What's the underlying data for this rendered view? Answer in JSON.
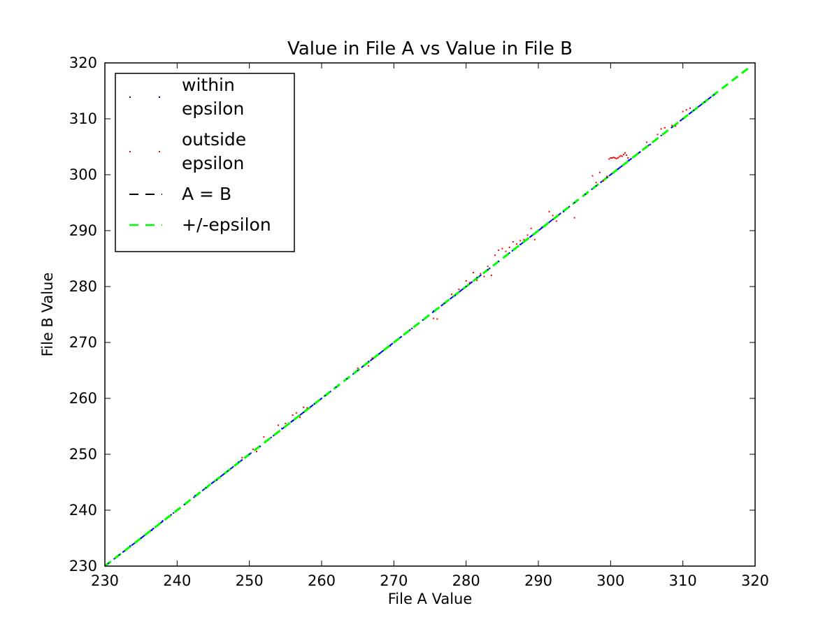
{
  "chart_data": {
    "type": "scatter",
    "title": "Value in File A vs Value in File B",
    "xlabel": "File A Value",
    "ylabel": "File B Value",
    "xlim": [
      230,
      320
    ],
    "ylim": [
      230,
      320
    ],
    "xticks": [
      230,
      240,
      250,
      260,
      270,
      280,
      290,
      300,
      310,
      320
    ],
    "yticks": [
      230,
      240,
      250,
      260,
      270,
      280,
      290,
      300,
      310,
      320
    ],
    "grid": false,
    "legend_position": "top-left",
    "legend": [
      {
        "label_lines": [
          "within",
          "epsilon"
        ],
        "marker": "point",
        "color": "#000080"
      },
      {
        "label_lines": [
          "outside",
          "epsilon"
        ],
        "marker": "point",
        "color": "#ff0000"
      },
      {
        "label_lines": [
          "A = B"
        ],
        "marker": "dashed-line",
        "color": "#000000"
      },
      {
        "label_lines": [
          "+/-epsilon"
        ],
        "marker": "dashed-line",
        "color": "#00ff00"
      }
    ],
    "series": [
      {
        "name": "within epsilon",
        "kind": "scatter",
        "color": "#0000ff",
        "points": [
          [
            230.5,
            230.5
          ],
          [
            232.0,
            232.0
          ],
          [
            233.5,
            233.6
          ],
          [
            235.0,
            235.0
          ],
          [
            236.5,
            236.4
          ],
          [
            238.0,
            238.1
          ],
          [
            239.5,
            239.5
          ],
          [
            241.0,
            241.0
          ],
          [
            242.5,
            242.6
          ],
          [
            244.0,
            244.0
          ],
          [
            245.5,
            245.4
          ],
          [
            247.0,
            247.0
          ],
          [
            248.5,
            248.6
          ],
          [
            250.0,
            250.0
          ],
          [
            251.5,
            251.4
          ],
          [
            253.0,
            253.0
          ],
          [
            254.5,
            254.6
          ],
          [
            256.0,
            256.0
          ],
          [
            257.5,
            257.5
          ],
          [
            259.0,
            259.0
          ],
          [
            260.5,
            260.5
          ],
          [
            262.0,
            262.0
          ],
          [
            263.5,
            263.5
          ],
          [
            265.0,
            265.0
          ],
          [
            266.5,
            266.6
          ],
          [
            268.0,
            268.0
          ],
          [
            269.5,
            269.4
          ],
          [
            271.0,
            271.0
          ],
          [
            272.5,
            272.5
          ],
          [
            274.0,
            274.0
          ],
          [
            275.5,
            275.6
          ],
          [
            277.0,
            277.0
          ],
          [
            278.5,
            278.4
          ],
          [
            280.0,
            280.0
          ],
          [
            281.5,
            281.6
          ],
          [
            283.0,
            283.0
          ],
          [
            284.5,
            284.5
          ],
          [
            286.0,
            286.0
          ],
          [
            287.5,
            287.5
          ],
          [
            289.0,
            289.0
          ],
          [
            290.5,
            290.6
          ],
          [
            292.0,
            292.0
          ],
          [
            293.5,
            293.4
          ],
          [
            295.0,
            295.0
          ],
          [
            296.5,
            296.5
          ],
          [
            298.0,
            298.0
          ],
          [
            299.5,
            299.5
          ],
          [
            301.0,
            301.0
          ],
          [
            302.5,
            302.6
          ],
          [
            304.0,
            304.0
          ],
          [
            305.5,
            305.4
          ],
          [
            307.0,
            307.0
          ],
          [
            308.5,
            308.5
          ],
          [
            310.0,
            310.0
          ],
          [
            311.5,
            311.5
          ],
          [
            313.0,
            313.0
          ],
          [
            314.3,
            314.3
          ]
        ]
      },
      {
        "name": "outside epsilon",
        "kind": "scatter",
        "color": "#ff0000",
        "points": [
          [
            249.0,
            249.4
          ],
          [
            250.5,
            250.9
          ],
          [
            251.0,
            250.5
          ],
          [
            252.0,
            253.1
          ],
          [
            254.0,
            255.2
          ],
          [
            255.0,
            255.5
          ],
          [
            256.0,
            257.0
          ],
          [
            256.5,
            257.4
          ],
          [
            257.0,
            256.6
          ],
          [
            257.5,
            258.4
          ],
          [
            258.0,
            258.3
          ],
          [
            265.0,
            265.4
          ],
          [
            266.5,
            265.8
          ],
          [
            267.0,
            267.2
          ],
          [
            275.5,
            274.3
          ],
          [
            276.0,
            274.2
          ],
          [
            278.0,
            278.6
          ],
          [
            279.0,
            279.5
          ],
          [
            280.0,
            281.0
          ],
          [
            280.5,
            280.7
          ],
          [
            281.0,
            282.5
          ],
          [
            281.5,
            281.1
          ],
          [
            282.0,
            282.3
          ],
          [
            282.5,
            281.8
          ],
          [
            283.0,
            283.6
          ],
          [
            283.5,
            282.0
          ],
          [
            284.0,
            285.6
          ],
          [
            284.5,
            286.5
          ],
          [
            285.0,
            286.8
          ],
          [
            285.5,
            286.3
          ],
          [
            286.0,
            287.0
          ],
          [
            286.5,
            288.0
          ],
          [
            287.0,
            287.6
          ],
          [
            287.5,
            288.2
          ],
          [
            288.0,
            288.4
          ],
          [
            288.5,
            289.2
          ],
          [
            289.0,
            290.4
          ],
          [
            289.5,
            288.4
          ],
          [
            291.5,
            293.4
          ],
          [
            292.0,
            292.7
          ],
          [
            292.5,
            291.7
          ],
          [
            295.0,
            292.3
          ],
          [
            297.5,
            299.8
          ],
          [
            298.0,
            298.6
          ],
          [
            298.5,
            300.4
          ],
          [
            299.0,
            298.9
          ],
          [
            299.5,
            299.7
          ],
          [
            299.8,
            302.8
          ],
          [
            300.0,
            303.0
          ],
          [
            300.2,
            303.0
          ],
          [
            300.4,
            303.1
          ],
          [
            300.6,
            303.0
          ],
          [
            300.8,
            302.9
          ],
          [
            301.0,
            303.0
          ],
          [
            301.2,
            303.2
          ],
          [
            301.4,
            303.4
          ],
          [
            301.6,
            303.3
          ],
          [
            301.8,
            303.6
          ],
          [
            302.0,
            303.9
          ],
          [
            302.2,
            303.5
          ],
          [
            302.4,
            303.0
          ],
          [
            305.0,
            305.8
          ],
          [
            306.5,
            307.2
          ],
          [
            307.0,
            308.2
          ],
          [
            307.5,
            308.4
          ],
          [
            308.5,
            308.8
          ],
          [
            309.0,
            308.7
          ],
          [
            310.0,
            311.3
          ],
          [
            310.5,
            311.6
          ],
          [
            311.0,
            311.9
          ]
        ]
      },
      {
        "name": "A = B",
        "kind": "line",
        "style": "dashed",
        "color": "#0000ff",
        "x": [
          230,
          314.5
        ],
        "y": [
          230,
          314.5
        ]
      },
      {
        "name": "+/-epsilon",
        "kind": "line",
        "style": "dashed",
        "color": "#00ff00",
        "x": [
          230,
          319
        ],
        "y": [
          230,
          319
        ]
      }
    ]
  }
}
